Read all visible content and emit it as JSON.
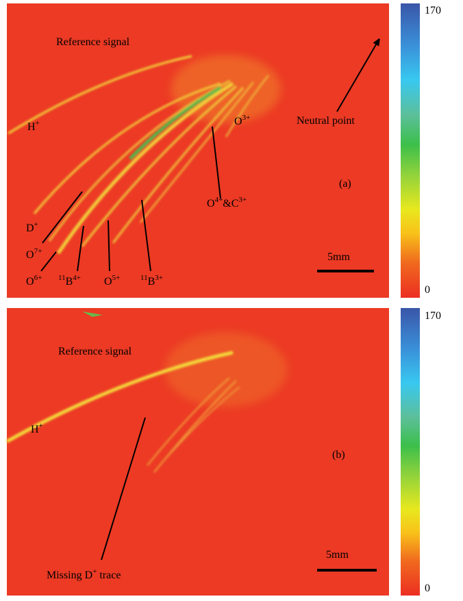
{
  "panels": [
    {
      "labels": [
        {
          "parts": [
            {
              "text": "Reference signal"
            }
          ]
        },
        {
          "parts": [
            {
              "text": "H"
            },
            {
              "sup": "+"
            }
          ]
        },
        {
          "parts": [
            {
              "text": "O"
            },
            {
              "sup": "3+"
            }
          ]
        },
        {
          "parts": [
            {
              "text": "Neutral point"
            }
          ]
        },
        {
          "parts": [
            {
              "text": "(a)"
            }
          ]
        },
        {
          "parts": [
            {
              "text": "O"
            },
            {
              "sup": "4+"
            },
            {
              "text": "&C"
            },
            {
              "sup": "3+"
            }
          ]
        },
        {
          "parts": [
            {
              "text": "D"
            },
            {
              "sup": "+"
            }
          ]
        },
        {
          "parts": [
            {
              "text": "O"
            },
            {
              "sup": "7+"
            }
          ]
        },
        {
          "parts": [
            {
              "text": "O"
            },
            {
              "sup": "6+"
            }
          ]
        },
        {
          "parts": [
            {
              "sup": "11"
            },
            {
              "text": "B"
            },
            {
              "sup": "4+"
            }
          ]
        },
        {
          "parts": [
            {
              "text": "O"
            },
            {
              "sup": "5+"
            }
          ]
        },
        {
          "parts": [
            {
              "sup": "11"
            },
            {
              "text": "B"
            },
            {
              "sup": "3+"
            }
          ]
        }
      ],
      "scale_bar": "5mm",
      "colorbar": {
        "max": 170,
        "min": 0
      }
    },
    {
      "labels": [
        {
          "parts": [
            {
              "text": "Reference signal"
            }
          ]
        },
        {
          "parts": [
            {
              "text": "H"
            },
            {
              "sup": "+"
            }
          ]
        },
        {
          "parts": [
            {
              "text": "(b)"
            }
          ]
        },
        {
          "parts": [
            {
              "text": "Missing D"
            },
            {
              "sup": "+"
            },
            {
              "text": " trace"
            }
          ]
        }
      ],
      "scale_bar": "5mm",
      "colorbar": {
        "max": 170,
        "min": 0
      }
    }
  ]
}
